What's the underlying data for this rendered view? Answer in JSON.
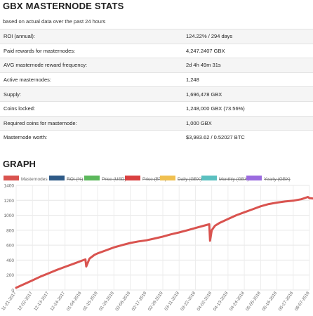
{
  "header": {
    "title": "GBX MASTERNODE STATS",
    "subtitle": "based on actual data over the past 24 hours"
  },
  "stats": [
    {
      "label": "ROI (annual):",
      "value": "124.22% / 294 days"
    },
    {
      "label": "Paid rewards for masternodes:",
      "value": "4,247.2407 GBX"
    },
    {
      "label": "AVG masternode reward frequency:",
      "value": "2d 4h 49m 31s"
    },
    {
      "label": "Active masternodes:",
      "value": "1,248"
    },
    {
      "label": "Supply:",
      "value": "1,696,478 GBX"
    },
    {
      "label": "Coins locked:",
      "value": "1,248,000 GBX (73.56%)"
    },
    {
      "label": "Required coins for masternode:",
      "value": "1,000 GBX"
    },
    {
      "label": "Masternode worth:",
      "value": "$3,983.62 / 0.52027 BTC"
    }
  ],
  "graph": {
    "title": "GRAPH"
  },
  "chart_data": {
    "type": "line",
    "legend": [
      {
        "name": "Masternodes",
        "color": "#d9534f",
        "active": true
      },
      {
        "name": "ROI (%)",
        "color": "#2e5a87",
        "active": false
      },
      {
        "name": "Price (USD)",
        "color": "#5cb85c",
        "active": false
      },
      {
        "name": "Price (BTC)",
        "color": "#d94040",
        "active": false
      },
      {
        "name": "Daily (GBX)",
        "color": "#f0c050",
        "active": false
      },
      {
        "name": "Monthly (GBX)",
        "color": "#5bc0c0",
        "active": false
      },
      {
        "name": "Yearly (GBX)",
        "color": "#9b6bdf",
        "active": false
      }
    ],
    "x_labels": [
      "11-21-2017",
      "12-02-2017",
      "12-13-2017",
      "12-24-2017",
      "01-04-2018",
      "01-15-2018",
      "01-26-2018",
      "02-06-2018",
      "02-17-2018",
      "02-28-2018",
      "03-11-2018",
      "03-22-2018",
      "04-02-2018",
      "04-13-2018",
      "04-24-2018",
      "05-05-2018",
      "05-16-2018",
      "05-27-2018",
      "06-07-2018"
    ],
    "ylim": [
      0,
      1400
    ],
    "y_ticks": [
      0,
      200,
      400,
      600,
      800,
      1000,
      1200,
      1400
    ],
    "series": [
      {
        "name": "Masternodes",
        "color": "#d9534f",
        "x": [
          0,
          0.5,
          1,
          1.5,
          2,
          2.5,
          3,
          3.5,
          4,
          4.25,
          4.3,
          4.5,
          4.8,
          5,
          5.5,
          6,
          6.5,
          7,
          7.5,
          8,
          8.5,
          9,
          9.5,
          10,
          10.5,
          11,
          11.5,
          11.85,
          11.9,
          12,
          12.2,
          12.5,
          13,
          13.5,
          14,
          14.5,
          15,
          15.5,
          16,
          16.5,
          17,
          17.5,
          17.9,
          18,
          18.2
        ],
        "y": [
          30,
          80,
          130,
          180,
          225,
          270,
          310,
          350,
          390,
          410,
          315,
          420,
          470,
          490,
          530,
          570,
          600,
          630,
          650,
          665,
          690,
          715,
          745,
          770,
          800,
          830,
          860,
          880,
          660,
          800,
          860,
          900,
          950,
          1000,
          1040,
          1080,
          1120,
          1150,
          1170,
          1185,
          1195,
          1215,
          1245,
          1230,
          1225
        ]
      }
    ]
  }
}
